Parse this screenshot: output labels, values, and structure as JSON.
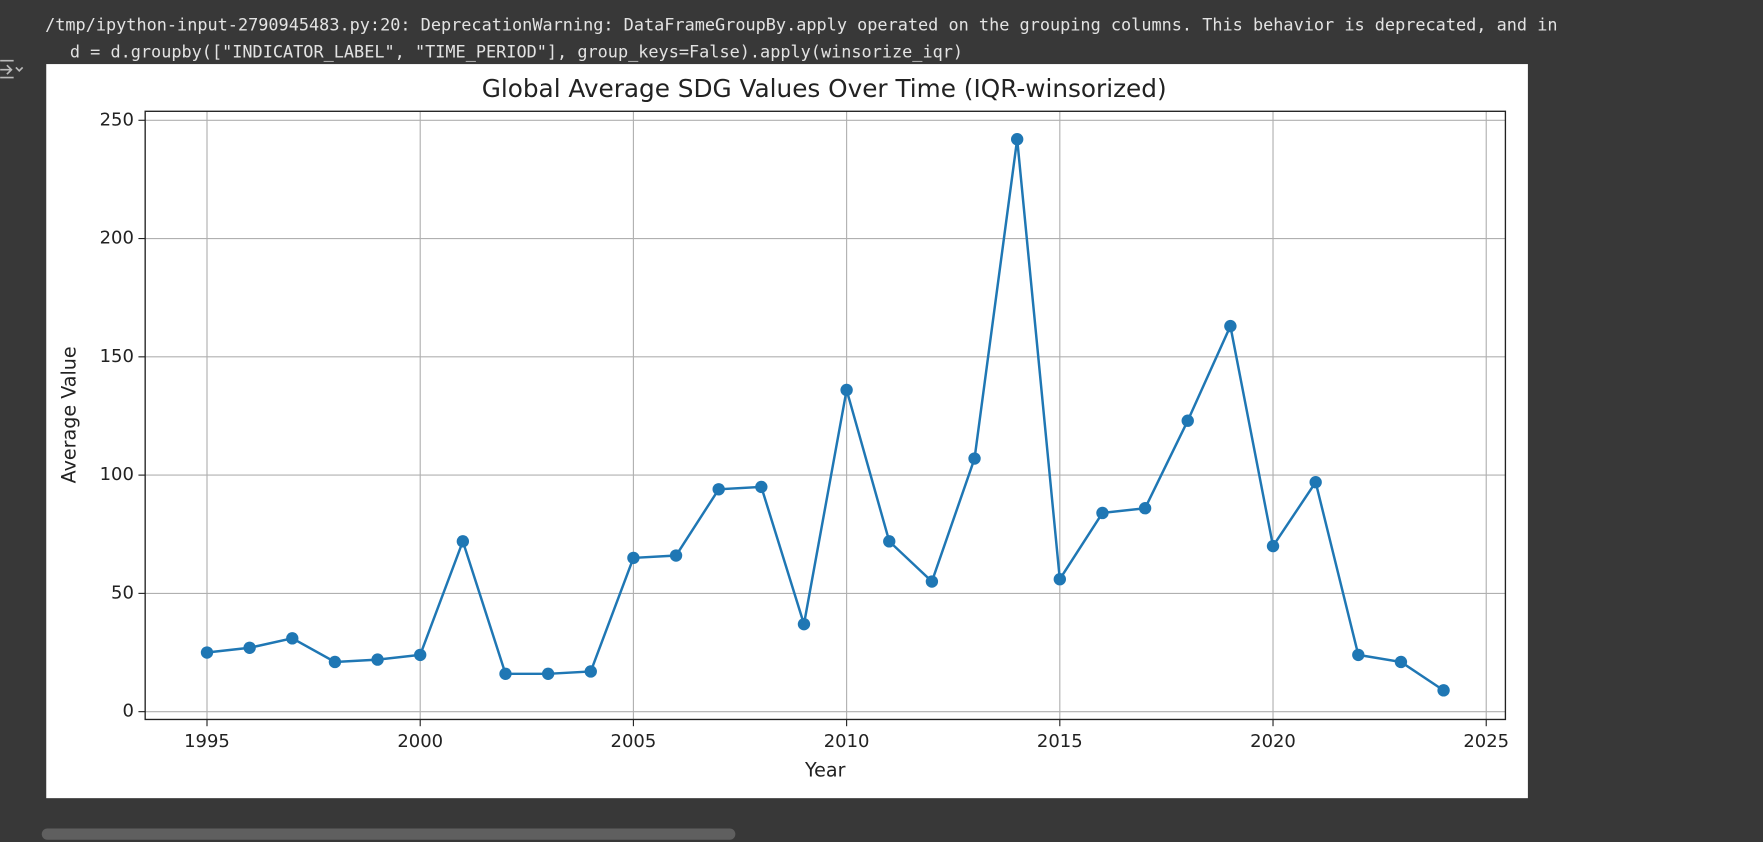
{
  "output": {
    "warning_lines": [
      "/tmp/ipython-input-2790945483.py:20: DeprecationWarning: DataFrameGroupBy.apply operated on the grouping columns. This behavior is deprecated, and in",
      "d = d.groupby([\"INDICATOR_LABEL\", \"TIME_PERIOD\"], group_keys=False).apply(winsorize_iqr)"
    ]
  },
  "chart_data": {
    "type": "line",
    "title": "Global Average SDG Values Over Time (IQR-winsorized)",
    "x_label": "Year",
    "y_label": "Average Value",
    "x": [
      1995,
      1996,
      1997,
      1998,
      1999,
      2000,
      2001,
      2002,
      2003,
      2004,
      2005,
      2006,
      2007,
      2008,
      2009,
      2010,
      2011,
      2012,
      2013,
      2014,
      2015,
      2016,
      2017,
      2018,
      2019,
      2020,
      2021,
      2022,
      2023,
      2024
    ],
    "series": [
      {
        "name": "Average Value",
        "color": "#1f77b4",
        "values": [
          25,
          27,
          31,
          21,
          22,
          24,
          72,
          16,
          16,
          17,
          65,
          66,
          94,
          95,
          37,
          136,
          72,
          55,
          107,
          242,
          56,
          84,
          86,
          123,
          163,
          70,
          97,
          24,
          21,
          9
        ]
      }
    ],
    "xlim": [
      1993.55,
      2025.45
    ],
    "ylim": [
      -3.3,
      253.8
    ],
    "xticks": [
      1995,
      2000,
      2005,
      2010,
      2015,
      2020,
      2025
    ],
    "yticks": [
      0,
      50,
      100,
      150,
      200,
      250
    ],
    "grid": true,
    "marker": "o"
  }
}
